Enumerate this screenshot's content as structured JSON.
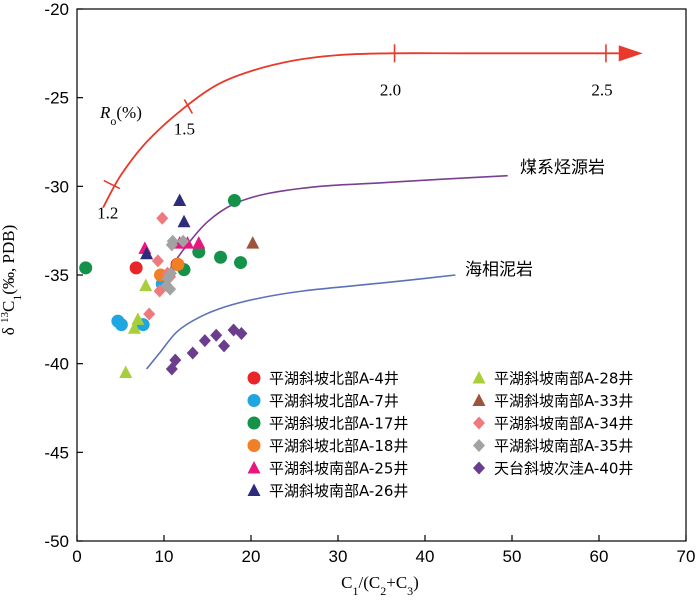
{
  "chart_data": {
    "type": "scatter",
    "xlim": [
      0,
      70
    ],
    "ylim": [
      -50,
      -20
    ],
    "x_ticks": [
      "0",
      "10",
      "20",
      "30",
      "40",
      "50",
      "60",
      "70"
    ],
    "y_ticks": [
      "-20",
      "-25",
      "-30",
      "-35",
      "-40",
      "-45",
      "-50"
    ],
    "xlabel": {
      "a": "C",
      "a_sub": "1",
      "b": "/(C",
      "b_sub": "2",
      "c": "+C",
      "c_sub": "3",
      "d": ")"
    },
    "ylabel": {
      "a": "δ ",
      "a_sup": "13",
      "b": "C",
      "b_sub": "1",
      "c": "(‰, PDB)"
    },
    "ro_label": {
      "r": "R",
      "o": "o",
      "rest": "(%)"
    },
    "ro_ticks": [
      {
        "label": "1.2",
        "x": 4.0,
        "y": -29.9
      },
      {
        "label": "1.5",
        "x": 12.8,
        "y": -25.5
      },
      {
        "label": "2.0",
        "x": 36.5,
        "y": -22.5
      },
      {
        "label": "2.5",
        "x": 60.8,
        "y": -22.5
      }
    ],
    "ro_curve": {
      "color": "#e8392a",
      "points": [
        [
          3.0,
          -31.2
        ],
        [
          5.0,
          -29.4
        ],
        [
          8.0,
          -27.5
        ],
        [
          12.0,
          -25.7
        ],
        [
          16.0,
          -24.3
        ],
        [
          20.0,
          -23.5
        ],
        [
          25.0,
          -22.9
        ],
        [
          30.0,
          -22.6
        ],
        [
          36.0,
          -22.5
        ],
        [
          45.0,
          -22.5
        ],
        [
          55.0,
          -22.5
        ],
        [
          62.5,
          -22.5
        ]
      ]
    },
    "reference_curves": [
      {
        "label": "煤系烃源岩",
        "color": "#7b3f8f",
        "points": [
          [
            9.0,
            -36.0
          ],
          [
            10.5,
            -34.8
          ],
          [
            12.5,
            -33.4
          ],
          [
            15.0,
            -32.0
          ],
          [
            18.0,
            -31.0
          ],
          [
            22.0,
            -30.4
          ],
          [
            28.0,
            -30.0
          ],
          [
            35.0,
            -29.8
          ],
          [
            42.0,
            -29.6
          ],
          [
            49.5,
            -29.4
          ]
        ]
      },
      {
        "label": "海相泥岩",
        "color": "#5b72b9",
        "points": [
          [
            8.0,
            -40.3
          ],
          [
            9.5,
            -39.4
          ],
          [
            11.5,
            -38.2
          ],
          [
            14.0,
            -37.4
          ],
          [
            17.0,
            -36.8
          ],
          [
            21.0,
            -36.3
          ],
          [
            26.0,
            -35.9
          ],
          [
            32.0,
            -35.6
          ],
          [
            38.0,
            -35.3
          ],
          [
            43.5,
            -35.0
          ]
        ]
      }
    ],
    "series": [
      {
        "name": "平湖斜坡北部A-4井",
        "marker": "circle",
        "color": "#e8262a",
        "points": [
          [
            6.8,
            -34.6
          ],
          [
            11.5,
            -34.4
          ]
        ]
      },
      {
        "name": "平湖斜坡北部A-7井",
        "marker": "circle",
        "color": "#1fa6e0",
        "points": [
          [
            4.7,
            -37.6
          ],
          [
            5.1,
            -37.8
          ],
          [
            7.6,
            -37.8
          ],
          [
            9.8,
            -35.5
          ]
        ]
      },
      {
        "name": "平湖斜坡北部A-17井",
        "marker": "circle",
        "color": "#15924a",
        "points": [
          [
            1.0,
            -34.6
          ],
          [
            12.3,
            -34.7
          ],
          [
            14.0,
            -33.7
          ],
          [
            16.5,
            -34.0
          ],
          [
            18.1,
            -30.8
          ],
          [
            18.8,
            -34.3
          ]
        ]
      },
      {
        "name": "平湖斜坡北部A-18井",
        "marker": "circle",
        "color": "#f07f25",
        "points": [
          [
            9.6,
            -35.0
          ],
          [
            11.6,
            -34.4
          ]
        ]
      },
      {
        "name": "平湖斜坡南部A-25井",
        "marker": "triangle",
        "color": "#e6177f",
        "points": [
          [
            7.8,
            -33.5
          ],
          [
            11.8,
            -33.2
          ],
          [
            12.7,
            -33.2
          ],
          [
            14.0,
            -33.2
          ]
        ]
      },
      {
        "name": "平湖斜坡南部A-26井",
        "marker": "triangle",
        "color": "#2e2b7a",
        "points": [
          [
            8.0,
            -33.8
          ],
          [
            11.8,
            -30.8
          ],
          [
            12.3,
            -32.0
          ]
        ]
      },
      {
        "name": "平湖斜坡南部A-28井",
        "marker": "triangle",
        "color": "#a8cf3a",
        "points": [
          [
            5.6,
            -40.5
          ],
          [
            6.6,
            -38.0
          ],
          [
            7.0,
            -37.5
          ],
          [
            7.9,
            -35.6
          ]
        ]
      },
      {
        "name": "平湖斜坡南部A-33井",
        "marker": "triangle",
        "color": "#a0533c",
        "points": [
          [
            20.2,
            -33.2
          ]
        ]
      },
      {
        "name": "平湖斜坡南部A-34井",
        "marker": "diamond",
        "color": "#ef7a7e",
        "points": [
          [
            8.3,
            -37.2
          ],
          [
            9.3,
            -34.2
          ],
          [
            9.5,
            -35.9
          ],
          [
            9.8,
            -31.8
          ],
          [
            10.4,
            -34.9
          ],
          [
            10.7,
            -35.1
          ]
        ]
      },
      {
        "name": "平湖斜坡南部A-35井",
        "marker": "diamond",
        "color": "#a2a2a2",
        "points": [
          [
            10.3,
            -35.6
          ],
          [
            10.4,
            -35.2
          ],
          [
            10.7,
            -35.8
          ],
          [
            10.8,
            -34.9
          ],
          [
            10.9,
            -33.3
          ],
          [
            11.0,
            -33.1
          ],
          [
            12.2,
            -33.1
          ]
        ]
      },
      {
        "name": "天台斜坡次洼A-40井",
        "marker": "diamond",
        "color": "#6a3d8f",
        "points": [
          [
            10.9,
            -40.3
          ],
          [
            11.3,
            -39.8
          ],
          [
            13.3,
            -39.4
          ],
          [
            14.7,
            -38.7
          ],
          [
            16.0,
            -38.4
          ],
          [
            16.9,
            -39.0
          ],
          [
            18.0,
            -38.1
          ],
          [
            18.9,
            -38.3
          ]
        ]
      }
    ],
    "legend": {
      "position": "bottom-right",
      "columns": 2
    }
  }
}
